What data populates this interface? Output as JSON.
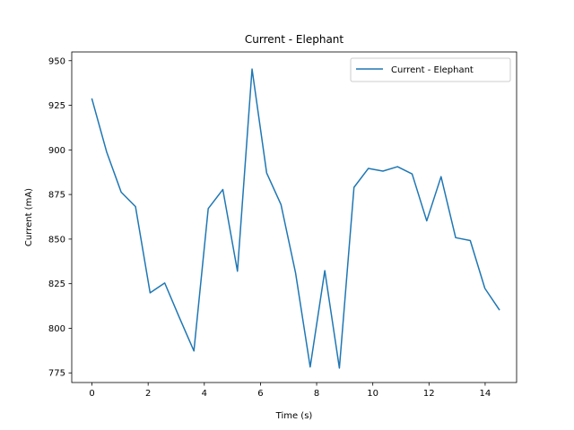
{
  "chart_data": {
    "type": "line",
    "title": "Current - Elephant",
    "xlabel": "Time (s)",
    "ylabel": "Current (mA)",
    "xlim": [
      -0.72,
      15.12
    ],
    "ylim": [
      769.6,
      954.9
    ],
    "xticks": [
      0,
      2,
      4,
      6,
      8,
      10,
      12,
      14
    ],
    "yticks": [
      775,
      800,
      825,
      850,
      875,
      900,
      925,
      950
    ],
    "legend_position": "top-right",
    "series": [
      {
        "name": "Current - Elephant",
        "color": "#1f77b4",
        "x": [
          0.0,
          0.52,
          1.04,
          1.55,
          2.07,
          2.59,
          3.11,
          3.63,
          4.14,
          4.66,
          5.18,
          5.7,
          6.22,
          6.73,
          7.25,
          7.77,
          8.29,
          8.81,
          9.33,
          9.84,
          10.36,
          10.88,
          11.4,
          11.92,
          12.43,
          12.95,
          13.47,
          13.99,
          14.5
        ],
        "y": [
          928.5,
          899.0,
          876.3,
          868.2,
          819.9,
          825.4,
          806.1,
          787.3,
          867.1,
          877.8,
          832.0,
          945.3,
          887.1,
          869.4,
          831.0,
          778.3,
          832.3,
          777.7,
          879.0,
          889.6,
          888.1,
          890.6,
          886.5,
          860.2,
          885.0,
          850.8,
          849.2,
          822.4,
          810.5
        ]
      }
    ]
  }
}
